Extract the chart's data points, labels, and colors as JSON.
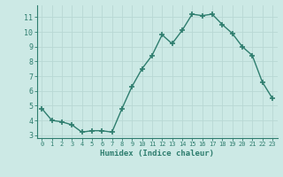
{
  "x": [
    0,
    1,
    2,
    3,
    4,
    5,
    6,
    7,
    8,
    9,
    10,
    11,
    12,
    13,
    14,
    15,
    16,
    17,
    18,
    19,
    20,
    21,
    22,
    23
  ],
  "y": [
    4.8,
    4.0,
    3.9,
    3.7,
    3.2,
    3.3,
    3.3,
    3.2,
    4.8,
    6.3,
    7.5,
    8.4,
    9.8,
    9.2,
    10.1,
    11.2,
    11.1,
    11.2,
    10.5,
    9.9,
    9.0,
    8.4,
    6.6,
    5.5
  ],
  "xlabel": "Humidex (Indice chaleur)",
  "xlim": [
    -0.5,
    23.5
  ],
  "ylim": [
    2.8,
    11.8
  ],
  "yticks": [
    3,
    4,
    5,
    6,
    7,
    8,
    9,
    10,
    11
  ],
  "xticks": [
    0,
    1,
    2,
    3,
    4,
    5,
    6,
    7,
    8,
    9,
    10,
    11,
    12,
    13,
    14,
    15,
    16,
    17,
    18,
    19,
    20,
    21,
    22,
    23
  ],
  "line_color": "#2e7d6e",
  "marker_color": "#2e7d6e",
  "bg_color": "#cce9e5",
  "grid_color": "#b8d8d4",
  "font_color": "#2e7d6e"
}
